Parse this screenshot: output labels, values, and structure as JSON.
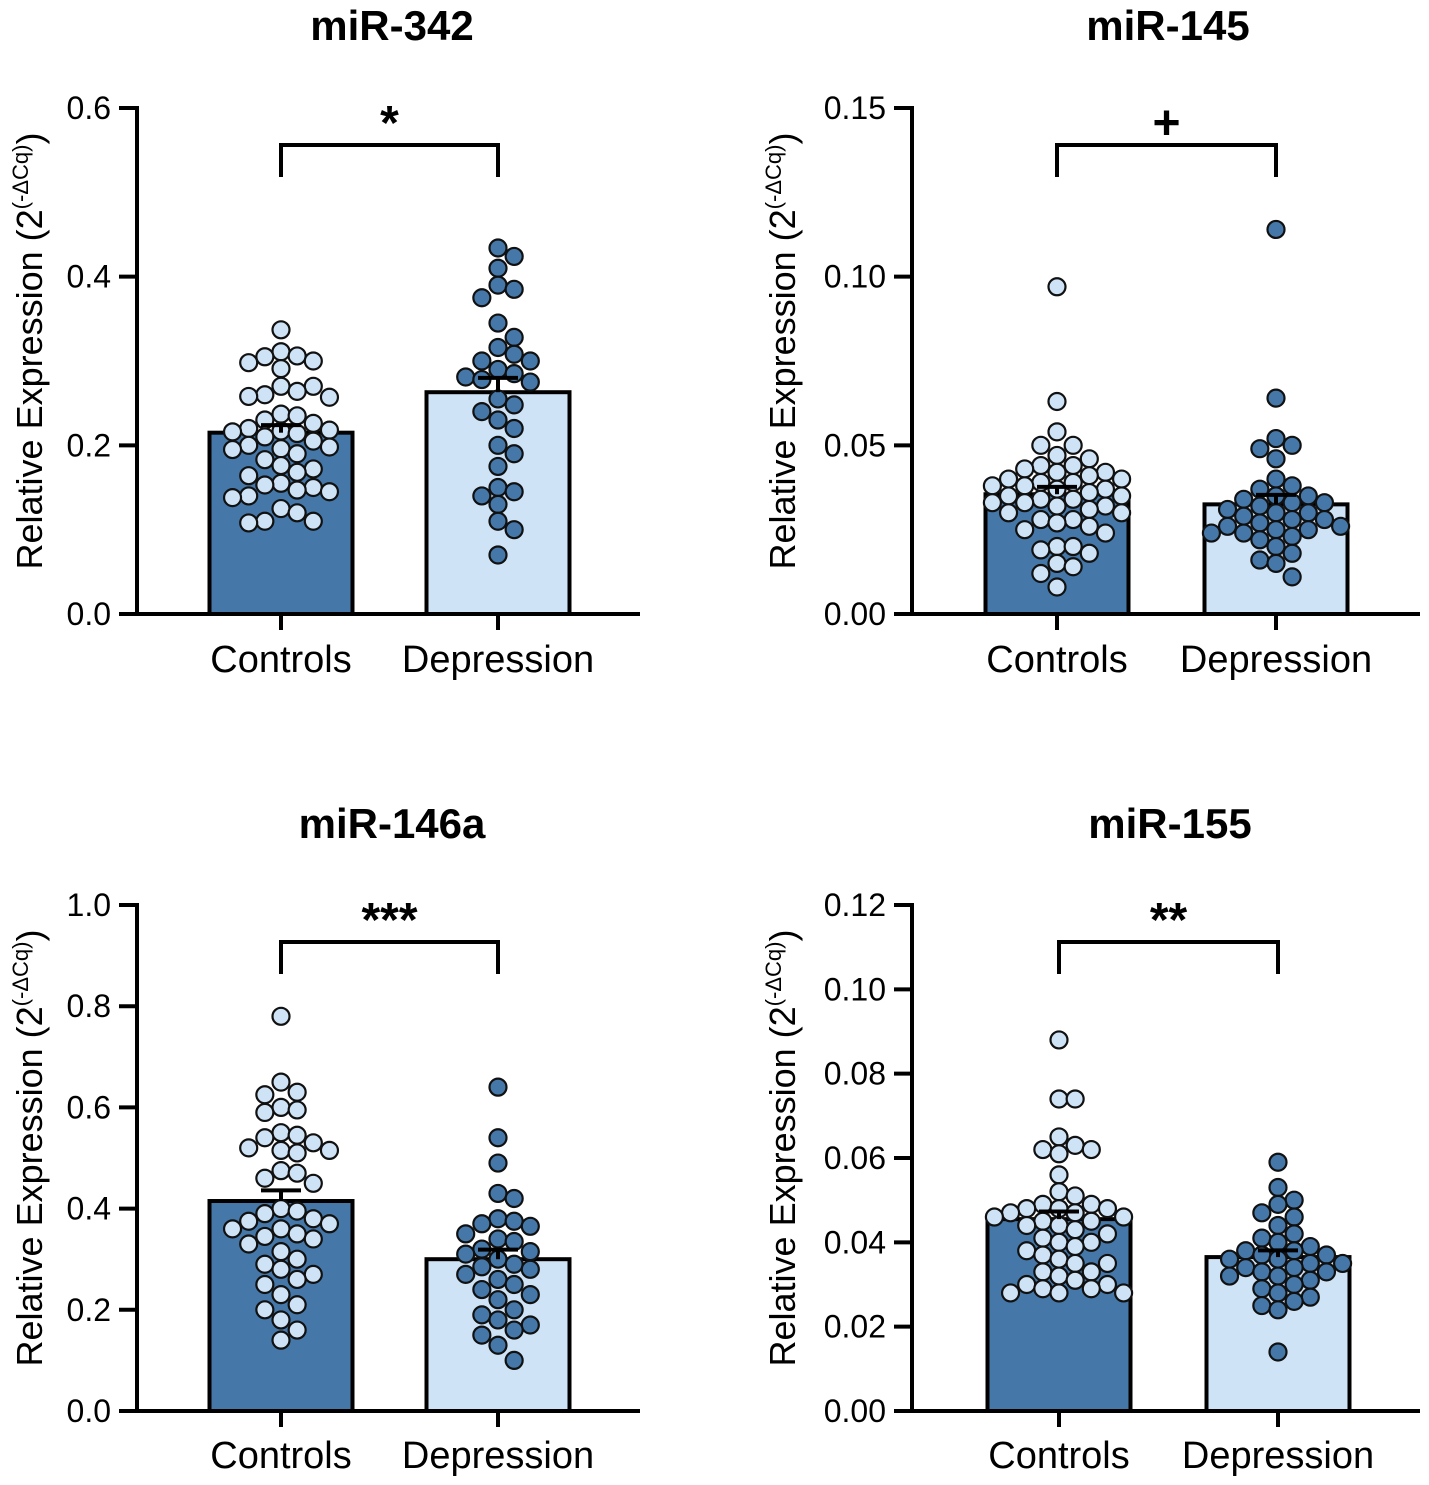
{
  "colors": {
    "dark": "#4578a9",
    "light": "#cfe3f7",
    "stroke": "#000000"
  },
  "chart_data": [
    {
      "type": "bar",
      "title": "miR-342",
      "ylabel": "Relative Expression (2",
      "ylabel_sup": "(-ΔCq)",
      "ylabel_close": ")",
      "categories": [
        "Controls",
        "Depression"
      ],
      "values": [
        0.215,
        0.263
      ],
      "sem": [
        0.009,
        0.017
      ],
      "ylim": [
        0,
        0.6
      ],
      "yticks": [
        0.0,
        0.2,
        0.4,
        0.6
      ],
      "ytick_labels": [
        "0.0",
        "0.2",
        "0.4",
        "0.6"
      ],
      "significance": "*",
      "points": [
        [
          0.337,
          0.311,
          0.306,
          0.305,
          0.3,
          0.298,
          0.291,
          0.27,
          0.27,
          0.264,
          0.26,
          0.258,
          0.257,
          0.237,
          0.235,
          0.23,
          0.226,
          0.22,
          0.218,
          0.217,
          0.216,
          0.214,
          0.21,
          0.205,
          0.2,
          0.198,
          0.196,
          0.195,
          0.19,
          0.183,
          0.176,
          0.172,
          0.168,
          0.164,
          0.155,
          0.153,
          0.15,
          0.147,
          0.145,
          0.14,
          0.138,
          0.125,
          0.12,
          0.11,
          0.11,
          0.108
        ],
        [
          0.434,
          0.424,
          0.41,
          0.39,
          0.385,
          0.375,
          0.345,
          0.328,
          0.316,
          0.308,
          0.3,
          0.3,
          0.29,
          0.285,
          0.281,
          0.278,
          0.275,
          0.255,
          0.248,
          0.24,
          0.23,
          0.22,
          0.2,
          0.19,
          0.175,
          0.15,
          0.145,
          0.14,
          0.13,
          0.11,
          0.1,
          0.07
        ]
      ]
    },
    {
      "type": "bar",
      "title": "miR-145",
      "ylabel": "Relative Expression (2",
      "ylabel_sup": "(-ΔCq)",
      "ylabel_close": ")",
      "categories": [
        "Controls",
        "Depression"
      ],
      "values": [
        0.0355,
        0.0325
      ],
      "sem": [
        0.0022,
        0.0028
      ],
      "ylim": [
        0,
        0.15
      ],
      "yticks": [
        0.0,
        0.05,
        0.1,
        0.15
      ],
      "ytick_labels": [
        "0.00",
        "0.05",
        "0.10",
        "0.15"
      ],
      "significance": "+",
      "points": [
        [
          0.097,
          0.063,
          0.054,
          0.05,
          0.05,
          0.047,
          0.046,
          0.044,
          0.044,
          0.043,
          0.042,
          0.042,
          0.041,
          0.04,
          0.04,
          0.039,
          0.039,
          0.038,
          0.038,
          0.037,
          0.037,
          0.036,
          0.035,
          0.035,
          0.034,
          0.034,
          0.033,
          0.033,
          0.032,
          0.032,
          0.031,
          0.03,
          0.03,
          0.028,
          0.028,
          0.027,
          0.026,
          0.025,
          0.024,
          0.02,
          0.02,
          0.019,
          0.018,
          0.015,
          0.014,
          0.012,
          0.008
        ],
        [
          0.114,
          0.064,
          0.052,
          0.05,
          0.049,
          0.046,
          0.04,
          0.038,
          0.037,
          0.035,
          0.035,
          0.034,
          0.033,
          0.033,
          0.032,
          0.031,
          0.03,
          0.03,
          0.029,
          0.028,
          0.028,
          0.027,
          0.026,
          0.026,
          0.025,
          0.025,
          0.024,
          0.024,
          0.023,
          0.022,
          0.02,
          0.018,
          0.016,
          0.015,
          0.011
        ]
      ]
    },
    {
      "type": "bar",
      "title": "miR-146a",
      "ylabel": "Relative Expression (2",
      "ylabel_sup": "(-ΔCq)",
      "ylabel_close": ")",
      "categories": [
        "Controls",
        "Depression"
      ],
      "values": [
        0.415,
        0.3
      ],
      "sem": [
        0.021,
        0.019
      ],
      "ylim": [
        0,
        1.0
      ],
      "yticks": [
        0.0,
        0.2,
        0.4,
        0.6,
        0.8,
        1.0
      ],
      "ytick_labels": [
        "0.0",
        "0.2",
        "0.4",
        "0.6",
        "0.8",
        "1.0"
      ],
      "significance": "***",
      "points": [
        [
          0.78,
          0.65,
          0.63,
          0.625,
          0.6,
          0.595,
          0.59,
          0.55,
          0.545,
          0.54,
          0.53,
          0.52,
          0.515,
          0.515,
          0.51,
          0.475,
          0.47,
          0.46,
          0.45,
          0.4,
          0.395,
          0.39,
          0.38,
          0.375,
          0.37,
          0.36,
          0.36,
          0.35,
          0.345,
          0.34,
          0.33,
          0.315,
          0.3,
          0.29,
          0.28,
          0.27,
          0.26,
          0.25,
          0.23,
          0.21,
          0.2,
          0.18,
          0.16,
          0.14
        ],
        [
          0.64,
          0.54,
          0.49,
          0.43,
          0.42,
          0.38,
          0.375,
          0.37,
          0.365,
          0.35,
          0.34,
          0.335,
          0.32,
          0.315,
          0.31,
          0.3,
          0.29,
          0.285,
          0.28,
          0.27,
          0.26,
          0.25,
          0.24,
          0.23,
          0.22,
          0.2,
          0.19,
          0.18,
          0.17,
          0.16,
          0.15,
          0.13,
          0.1
        ]
      ]
    },
    {
      "type": "bar",
      "title": "miR-155",
      "ylabel": "Relative Expression (2",
      "ylabel_sup": "(-ΔCq)",
      "ylabel_close": ")",
      "categories": [
        "Controls",
        "Depression"
      ],
      "values": [
        0.0455,
        0.0365
      ],
      "sem": [
        0.0018,
        0.0016
      ],
      "ylim": [
        0,
        0.12
      ],
      "yticks": [
        0.0,
        0.02,
        0.04,
        0.06,
        0.08,
        0.1,
        0.12
      ],
      "ytick_labels": [
        "0.00",
        "0.02",
        "0.04",
        "0.06",
        "0.08",
        "0.10",
        "0.12"
      ],
      "significance": "**",
      "points": [
        [
          0.088,
          0.074,
          0.074,
          0.065,
          0.063,
          0.062,
          0.062,
          0.061,
          0.056,
          0.052,
          0.051,
          0.049,
          0.049,
          0.048,
          0.048,
          0.048,
          0.047,
          0.047,
          0.046,
          0.046,
          0.045,
          0.045,
          0.044,
          0.044,
          0.043,
          0.042,
          0.041,
          0.04,
          0.04,
          0.039,
          0.038,
          0.037,
          0.036,
          0.035,
          0.035,
          0.033,
          0.033,
          0.032,
          0.031,
          0.03,
          0.03,
          0.029,
          0.029,
          0.028,
          0.028,
          0.028
        ],
        [
          0.059,
          0.053,
          0.05,
          0.049,
          0.047,
          0.046,
          0.044,
          0.042,
          0.041,
          0.04,
          0.039,
          0.038,
          0.038,
          0.037,
          0.037,
          0.036,
          0.036,
          0.035,
          0.035,
          0.034,
          0.034,
          0.033,
          0.033,
          0.032,
          0.032,
          0.031,
          0.03,
          0.029,
          0.028,
          0.027,
          0.026,
          0.025,
          0.024,
          0.014
        ]
      ]
    }
  ]
}
